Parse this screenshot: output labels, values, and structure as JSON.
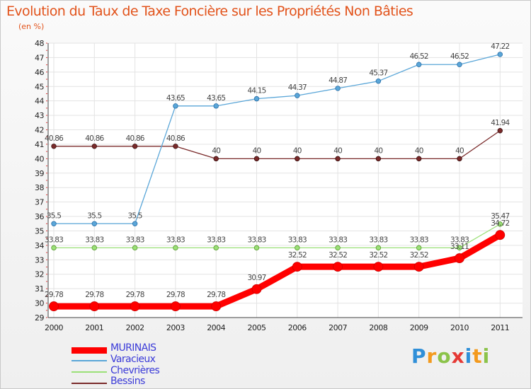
{
  "chart_data": {
    "type": "line",
    "title": "Evolution du Taux de Taxe Foncière sur les Propriétés Non Bâties",
    "subtitle": "(en %)",
    "xlabel": "",
    "ylabel": "",
    "ylim": [
      29,
      48
    ],
    "yticks": [
      29,
      30,
      31,
      32,
      33,
      34,
      35,
      36,
      37,
      38,
      39,
      40,
      41,
      42,
      43,
      44,
      45,
      46,
      47,
      48
    ],
    "x": [
      "2000",
      "2001",
      "2002",
      "2003",
      "2004",
      "2005",
      "2006",
      "2007",
      "2008",
      "2009",
      "2010",
      "2011"
    ],
    "series": [
      {
        "name": "MURINAIS",
        "color": "#ff0000",
        "values": [
          29.78,
          29.78,
          29.78,
          29.78,
          29.78,
          30.97,
          32.52,
          32.52,
          32.52,
          32.52,
          33.11,
          34.72
        ],
        "labels": [
          "29.78",
          "29.78",
          "29.78",
          "29.78",
          "29.78",
          "30.97",
          "32.52",
          "32.52",
          "32.52",
          "32.52",
          "33.11",
          "34.72"
        ]
      },
      {
        "name": "Varacieux",
        "color": "#5aa6d8",
        "values": [
          35.5,
          35.5,
          35.5,
          43.65,
          43.65,
          44.15,
          44.37,
          44.87,
          45.37,
          46.52,
          46.52,
          47.22
        ],
        "labels": [
          "35.5",
          "35.5",
          "35.5",
          "43.65",
          "43.65",
          "44.15",
          "44.37",
          "44.87",
          "45.37",
          "46.52",
          "46.52",
          "47.22"
        ]
      },
      {
        "name": "Chevrières",
        "color": "#9be078",
        "values": [
          33.83,
          33.83,
          33.83,
          33.83,
          33.83,
          33.83,
          33.83,
          33.83,
          33.83,
          33.83,
          33.83,
          35.47
        ],
        "labels": [
          "33.83",
          "33.83",
          "33.83",
          "33.83",
          "33.83",
          "33.83",
          "33.83",
          "33.83",
          "33.83",
          "33.83",
          "33.83",
          "35.47"
        ]
      },
      {
        "name": "Bessins",
        "color": "#7a2a2a",
        "values": [
          40.86,
          40.86,
          40.86,
          40.86,
          40,
          40,
          40,
          40,
          40,
          40,
          40,
          41.94
        ],
        "labels": [
          "40.86",
          "40.86",
          "40.86",
          "40.86",
          "40",
          "40",
          "40",
          "40",
          "40",
          "40",
          "40",
          "41.94"
        ]
      }
    ],
    "grid": true,
    "legend": "bottom-left"
  },
  "logo": {
    "text": "Proxiti",
    "letters": [
      "P",
      "r",
      "o",
      "x",
      "i",
      "t",
      "i"
    ]
  }
}
